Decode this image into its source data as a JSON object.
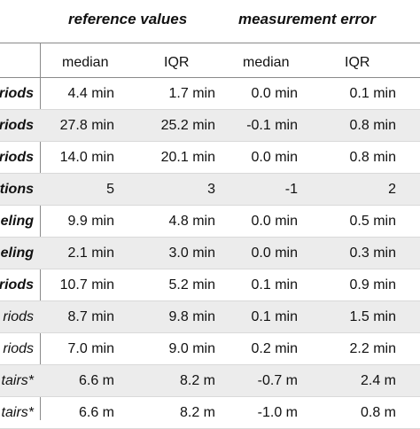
{
  "headers": {
    "group_reference": "reference values",
    "group_error": "measurement error",
    "columns": [
      "median",
      "IQR",
      "median",
      "IQR"
    ]
  },
  "rows": [
    {
      "label": "riods",
      "label_bold": true,
      "shaded": false,
      "values": [
        "4.4 min",
        "1.7 min",
        "0.0 min",
        "0.1 min"
      ]
    },
    {
      "label": "riods",
      "label_bold": true,
      "shaded": true,
      "values": [
        "27.8 min",
        "25.2 min",
        "-0.1 min",
        "0.8 min"
      ]
    },
    {
      "label": "riods",
      "label_bold": true,
      "shaded": false,
      "values": [
        "14.0 min",
        "20.1 min",
        "0.0 min",
        "0.8 min"
      ]
    },
    {
      "label": "tions",
      "label_bold": true,
      "shaded": true,
      "values": [
        "5",
        "3",
        "-1",
        "2"
      ]
    },
    {
      "label": "eling",
      "label_bold": true,
      "shaded": false,
      "values": [
        "9.9 min",
        "4.8 min",
        "0.0 min",
        "0.5 min"
      ]
    },
    {
      "label": "eling",
      "label_bold": true,
      "shaded": true,
      "values": [
        "2.1 min",
        "3.0 min",
        "0.0 min",
        "0.3 min"
      ]
    },
    {
      "label": "riods",
      "label_bold": true,
      "shaded": false,
      "values": [
        "10.7 min",
        "5.2 min",
        "0.1 min",
        "0.9 min"
      ]
    },
    {
      "label": "riods",
      "label_bold": false,
      "shaded": true,
      "values": [
        "8.7 min",
        "9.8 min",
        "0.1 min",
        "1.5 min"
      ]
    },
    {
      "label": "riods",
      "label_bold": false,
      "shaded": false,
      "values": [
        "7.0 min",
        "9.0 min",
        "0.2 min",
        "2.2 min"
      ]
    },
    {
      "label": "tairs*",
      "label_bold": false,
      "shaded": true,
      "values": [
        "6.6 m",
        "8.2 m",
        "-0.7 m",
        "2.4 m"
      ]
    },
    {
      "label": "tairs*",
      "label_bold": false,
      "shaded": false,
      "values": [
        "6.6 m",
        "8.2 m",
        "-1.0 m",
        "0.8 m"
      ]
    }
  ]
}
